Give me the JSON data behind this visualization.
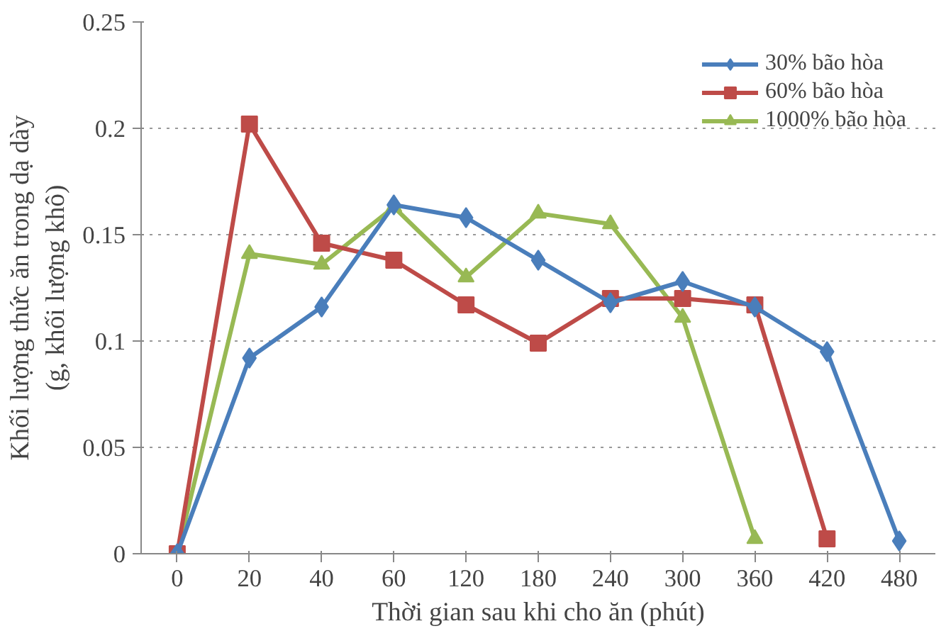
{
  "chart_data": {
    "type": "line",
    "xlabel": "Thời gian sau khi cho ăn (phút)",
    "ylabel": "Khối lượng thức ăn trong dạ dày\n(g, khối lượng khô)",
    "categories": [
      "0",
      "20",
      "40",
      "60",
      "120",
      "180",
      "240",
      "300",
      "360",
      "420",
      "480"
    ],
    "ylim": [
      0,
      0.25
    ],
    "yticks": [
      0,
      0.05,
      0.1,
      0.15,
      0.2,
      0.25
    ],
    "grid": "y",
    "legend": "top right",
    "line_style": "solid",
    "series": [
      {
        "name": "30% bão hòa",
        "color": "#4a7ebb",
        "marker": "diamond",
        "values": [
          0,
          0.092,
          0.116,
          0.164,
          0.158,
          0.138,
          0.118,
          0.128,
          0.116,
          0.095,
          0.006
        ]
      },
      {
        "name": "60% bão hòa",
        "color": "#be4b48",
        "marker": "square",
        "values": [
          0,
          0.202,
          0.146,
          0.138,
          0.117,
          0.099,
          0.12,
          0.12,
          0.117,
          0.007,
          null
        ]
      },
      {
        "name": "1000% bão hòa",
        "color": "#98b954",
        "marker": "triangle",
        "values": [
          0,
          0.141,
          0.136,
          0.163,
          0.13,
          0.16,
          0.155,
          0.111,
          0.007,
          null,
          null
        ]
      }
    ]
  }
}
